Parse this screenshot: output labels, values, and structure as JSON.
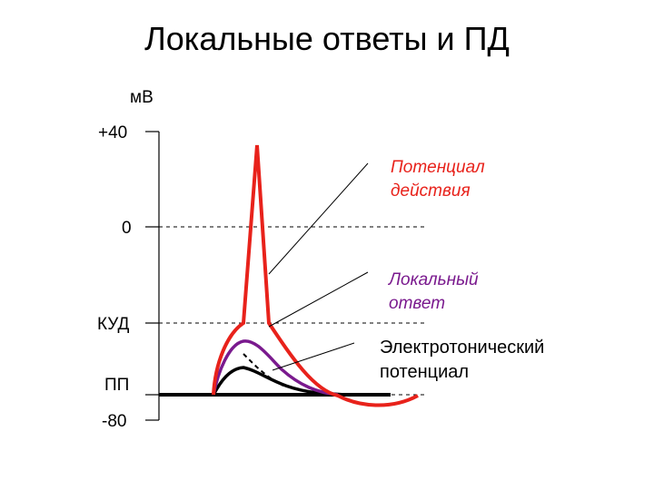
{
  "title": "Локальные ответы и ПД",
  "axis": {
    "unit": "мВ",
    "ticks": [
      "+40",
      "0",
      "КУД",
      "ПП",
      "-80"
    ]
  },
  "annotations": {
    "action_potential": {
      "line1": "Потенциал",
      "line2": "действия",
      "color": "#e8221b"
    },
    "local_response": {
      "line1": "Локальный",
      "line2": "ответ",
      "color": "#7a1a8e"
    },
    "electrotonic": {
      "line1": "Электротонический",
      "line2": "потенциал",
      "color": "#000000"
    }
  },
  "colors": {
    "ap": "#e8221b",
    "local": "#7a1a8e",
    "electrotonic": "#000000"
  }
}
